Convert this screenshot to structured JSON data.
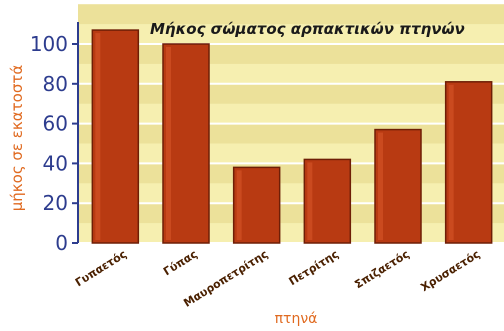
{
  "chart_data": {
    "type": "bar",
    "title": "Μήκος σώματος αρπακτικών πτηνών",
    "xlabel": "πτηνά",
    "ylabel": "μήκος σε εκατοστά",
    "categories": [
      "Γυπαετός",
      "Γύπας",
      "Μαυροπετρίτης",
      "Πετρίτης",
      "Σπιζαετός",
      "Χρυσαετός"
    ],
    "values": [
      107,
      100,
      38,
      42,
      57,
      81
    ],
    "yticks": [
      0,
      20,
      40,
      60,
      80,
      100
    ],
    "ylim": [
      0,
      110
    ],
    "grid": true,
    "colors": {
      "bar": "#b83a12",
      "bar_edge": "#6e1e06",
      "axis_text": "#2d3c8e",
      "label_text": "#e06a20",
      "plot_bg": "#f6efb0",
      "band": "#ece19a",
      "grid": "#ffffff"
    }
  }
}
